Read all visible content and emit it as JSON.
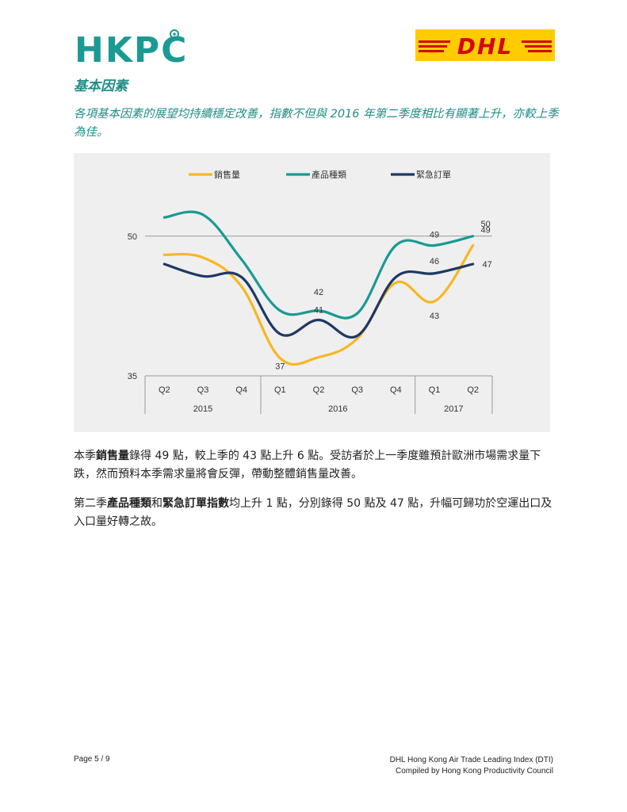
{
  "header": {
    "left_logo_text": "HKPC",
    "right_logo_text": "DHL"
  },
  "section": {
    "title": "基本因素",
    "lead": "各項基本因素的展望均持續穩定改善，指數不但與 2016 年第二季度相比有顯著上升，亦較上季為佳。"
  },
  "chart_data": {
    "type": "line",
    "title": "",
    "xlabel": "",
    "ylabel": "",
    "x": [
      "Q2",
      "Q3",
      "Q4",
      "Q1",
      "Q2",
      "Q3",
      "Q4",
      "Q1",
      "Q2"
    ],
    "year_groups": [
      {
        "label": "2015",
        "span": 3
      },
      {
        "label": "2016",
        "span": 4
      },
      {
        "label": "2017",
        "span": 2
      }
    ],
    "ylim": [
      35,
      55
    ],
    "y_ticks": [
      "50",
      "35"
    ],
    "reference_line": 50,
    "legend_position": "top",
    "series": [
      {
        "name": "銷售量",
        "color": "#f6b722",
        "values": [
          48.0,
          47.7,
          44.6,
          36.9,
          37.0,
          39.0,
          45.0,
          43.0,
          49.0
        ],
        "labels": [
          {
            "index": 3,
            "text": "37"
          },
          {
            "index": 7,
            "text": "43"
          },
          {
            "index": 8,
            "text": "49"
          }
        ]
      },
      {
        "name": "產品種類",
        "color": "#1a9a93",
        "values": [
          52.0,
          52.3,
          47.5,
          42.0,
          42.0,
          41.7,
          49.0,
          49.0,
          50.0
        ],
        "labels": [
          {
            "index": 4,
            "text": "42"
          },
          {
            "index": 7,
            "text": "49"
          },
          {
            "index": 8,
            "text": "50"
          }
        ]
      },
      {
        "name": "緊急訂單",
        "color": "#1f3863",
        "values": [
          47.0,
          45.7,
          45.6,
          39.5,
          41.0,
          39.3,
          45.6,
          46.0,
          47.0
        ],
        "labels": [
          {
            "index": 4,
            "text": "41"
          },
          {
            "index": 7,
            "text": "46"
          },
          {
            "index": 8,
            "text": "47"
          }
        ]
      }
    ]
  },
  "body": {
    "p1_pre": "本季",
    "p1_bold": "銷售量",
    "p1_post": "錄得 49 點，較上季的 43 點上升 6 點。受訪者於上一季度雖預計歐洲市場需求量下跌，然而預料本季需求量將會反彈，帶動整體銷售量改善。",
    "p2_pre": "第二季",
    "p2_bold1": "產品種類",
    "p2_mid": "和",
    "p2_bold2": "緊急訂單指數",
    "p2_post": "均上升 1 點，分別錄得 50 點及 47 點，升幅可歸功於空運出口及入口量好轉之故。"
  },
  "footer": {
    "page": "Page 5 / 9",
    "line1": "DHL Hong Kong Air Trade Leading Index (DTI)",
    "line2": "Compiled by Hong Kong Productivity Council"
  },
  "colors": {
    "hkpc_teal": "#1a9a93",
    "hkpc_dark": "#0f6d69",
    "dhl_yellow": "#ffcc00",
    "dhl_red": "#d40511",
    "accent_text": "#1e8e86"
  }
}
